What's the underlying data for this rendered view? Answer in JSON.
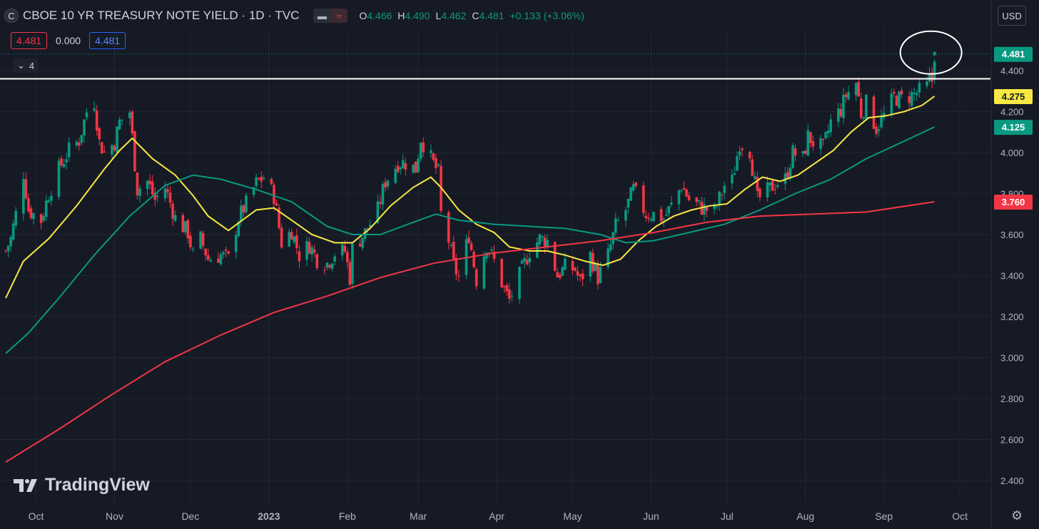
{
  "header": {
    "symbol_letter": "C",
    "title": "CBOE 10 YR TREASURY NOTE YIELD · 1D · TVC",
    "eye_icon": "eye-icon",
    "wave_icon": "wave-icon",
    "ohlc": {
      "o_label": "O",
      "o_value": "4.466",
      "h_label": "H",
      "h_value": "4.490",
      "l_label": "L",
      "l_value": "4.462",
      "c_label": "C",
      "c_value": "4.481",
      "change": "+0.133 (+3.06%)"
    }
  },
  "indicator_values": {
    "first": "4.481",
    "second": "0.000",
    "third": "4.481"
  },
  "collapse_count": "4",
  "currency": "USD",
  "logo_text": "TradingView",
  "colors": {
    "background": "#161a25",
    "up": "#089981",
    "down": "#f23645",
    "ma_fast": "#f7e843",
    "ma_mid": "#089981",
    "ma_slow": "#f23645"
  },
  "chart_data": {
    "type": "line",
    "title": "CBOE 10 YR TREASURY NOTE YIELD · 1D · TVC",
    "interval": "1D",
    "ylim": [
      2.37,
      4.52
    ],
    "y_ticks": [
      "4.400",
      "4.200",
      "4.000",
      "3.800",
      "3.600",
      "3.400",
      "3.200",
      "3.000",
      "2.800",
      "2.600",
      "2.400"
    ],
    "x_ticks": [
      {
        "label": "Oct",
        "date": "2022-10-01"
      },
      {
        "label": "Nov",
        "date": "2022-11-01"
      },
      {
        "label": "Dec",
        "date": "2022-12-01"
      },
      {
        "label": "2023",
        "date": "2023-01-01",
        "bold": true
      },
      {
        "label": "Feb",
        "date": "2023-02-01"
      },
      {
        "label": "Mar",
        "date": "2023-03-01"
      },
      {
        "label": "Apr",
        "date": "2023-04-01"
      },
      {
        "label": "May",
        "date": "2023-05-01"
      },
      {
        "label": "Jun",
        "date": "2023-06-01"
      },
      {
        "label": "Jul",
        "date": "2023-07-01"
      },
      {
        "label": "Aug",
        "date": "2023-08-01"
      },
      {
        "label": "Sep",
        "date": "2023-09-01"
      },
      {
        "label": "Oct",
        "date": "2023-10-01"
      }
    ],
    "x_range": [
      "2022-09-19",
      "2023-10-10"
    ],
    "close_series": [
      [
        "2022-09-19",
        3.52
      ],
      [
        "2022-09-21",
        3.58
      ],
      [
        "2022-09-23",
        3.7
      ],
      [
        "2022-09-26",
        3.9
      ],
      [
        "2022-09-28",
        3.72
      ],
      [
        "2022-10-03",
        3.67
      ],
      [
        "2022-10-06",
        3.8
      ],
      [
        "2022-10-10",
        3.92
      ],
      [
        "2022-10-14",
        4.01
      ],
      [
        "2022-10-18",
        4.06
      ],
      [
        "2022-10-21",
        4.2
      ],
      [
        "2022-10-24",
        4.25
      ],
      [
        "2022-10-26",
        4.05
      ],
      [
        "2022-10-28",
        4.0
      ],
      [
        "2022-11-01",
        4.05
      ],
      [
        "2022-11-03",
        4.15
      ],
      [
        "2022-11-07",
        4.2
      ],
      [
        "2022-11-10",
        3.82
      ],
      [
        "2022-11-14",
        3.86
      ],
      [
        "2022-11-17",
        3.77
      ],
      [
        "2022-11-21",
        3.83
      ],
      [
        "2022-11-25",
        3.68
      ],
      [
        "2022-11-30",
        3.61
      ],
      [
        "2022-12-02",
        3.5
      ],
      [
        "2022-12-05",
        3.58
      ],
      [
        "2022-12-08",
        3.48
      ],
      [
        "2022-12-13",
        3.5
      ],
      [
        "2022-12-16",
        3.48
      ],
      [
        "2022-12-20",
        3.68
      ],
      [
        "2022-12-23",
        3.75
      ],
      [
        "2022-12-27",
        3.85
      ],
      [
        "2022-12-30",
        3.88
      ],
      [
        "2023-01-03",
        3.79
      ],
      [
        "2023-01-06",
        3.56
      ],
      [
        "2023-01-10",
        3.62
      ],
      [
        "2023-01-13",
        3.5
      ],
      [
        "2023-01-17",
        3.55
      ],
      [
        "2023-01-20",
        3.48
      ],
      [
        "2023-01-24",
        3.46
      ],
      [
        "2023-01-27",
        3.51
      ],
      [
        "2023-01-31",
        3.52
      ],
      [
        "2023-02-02",
        3.39
      ],
      [
        "2023-02-03",
        3.53
      ],
      [
        "2023-02-08",
        3.61
      ],
      [
        "2023-02-13",
        3.72
      ],
      [
        "2023-02-16",
        3.86
      ],
      [
        "2023-02-21",
        3.95
      ],
      [
        "2023-02-24",
        3.95
      ],
      [
        "2023-02-28",
        3.92
      ],
      [
        "2023-03-02",
        4.07
      ],
      [
        "2023-03-06",
        3.97
      ],
      [
        "2023-03-09",
        3.9
      ],
      [
        "2023-03-10",
        3.7
      ],
      [
        "2023-03-13",
        3.57
      ],
      [
        "2023-03-15",
        3.45
      ],
      [
        "2023-03-17",
        3.39
      ],
      [
        "2023-03-21",
        3.6
      ],
      [
        "2023-03-24",
        3.38
      ],
      [
        "2023-03-28",
        3.55
      ],
      [
        "2023-03-31",
        3.47
      ],
      [
        "2023-04-04",
        3.33
      ],
      [
        "2023-04-06",
        3.28
      ],
      [
        "2023-04-10",
        3.4
      ],
      [
        "2023-04-14",
        3.52
      ],
      [
        "2023-04-18",
        3.58
      ],
      [
        "2023-04-21",
        3.57
      ],
      [
        "2023-04-25",
        3.4
      ],
      [
        "2023-04-28",
        3.44
      ],
      [
        "2023-05-02",
        3.43
      ],
      [
        "2023-05-04",
        3.37
      ],
      [
        "2023-05-08",
        3.5
      ],
      [
        "2023-05-11",
        3.39
      ],
      [
        "2023-05-15",
        3.5
      ],
      [
        "2023-05-18",
        3.64
      ],
      [
        "2023-05-22",
        3.72
      ],
      [
        "2023-05-25",
        3.82
      ],
      [
        "2023-05-30",
        3.7
      ],
      [
        "2023-06-02",
        3.7
      ],
      [
        "2023-06-06",
        3.68
      ],
      [
        "2023-06-09",
        3.74
      ],
      [
        "2023-06-13",
        3.84
      ],
      [
        "2023-06-16",
        3.77
      ],
      [
        "2023-06-21",
        3.73
      ],
      [
        "2023-06-26",
        3.71
      ],
      [
        "2023-06-30",
        3.84
      ],
      [
        "2023-07-03",
        3.86
      ],
      [
        "2023-07-06",
        4.05
      ],
      [
        "2023-07-10",
        4.01
      ],
      [
        "2023-07-13",
        3.77
      ],
      [
        "2023-07-17",
        3.81
      ],
      [
        "2023-07-20",
        3.85
      ],
      [
        "2023-07-24",
        3.87
      ],
      [
        "2023-07-27",
        4.0
      ],
      [
        "2023-07-31",
        3.97
      ],
      [
        "2023-08-02",
        4.08
      ],
      [
        "2023-08-04",
        4.05
      ],
      [
        "2023-08-08",
        4.02
      ],
      [
        "2023-08-11",
        4.15
      ],
      [
        "2023-08-15",
        4.21
      ],
      [
        "2023-08-17",
        4.28
      ],
      [
        "2023-08-21",
        4.34
      ],
      [
        "2023-08-23",
        4.19
      ],
      [
        "2023-08-25",
        4.24
      ],
      [
        "2023-08-29",
        4.12
      ],
      [
        "2023-09-01",
        4.18
      ],
      [
        "2023-09-05",
        4.27
      ],
      [
        "2023-09-08",
        4.26
      ],
      [
        "2023-09-12",
        4.28
      ],
      [
        "2023-09-14",
        4.29
      ],
      [
        "2023-09-18",
        4.32
      ],
      [
        "2023-09-19",
        4.36
      ],
      [
        "2023-09-20",
        4.35
      ],
      [
        "2023-09-21",
        4.481
      ]
    ],
    "series": [
      {
        "name": "4.275",
        "color": "#f7e843",
        "values": [
          [
            "2022-09-19",
            3.29
          ],
          [
            "2022-09-26",
            3.47
          ],
          [
            "2022-10-06",
            3.58
          ],
          [
            "2022-10-17",
            3.74
          ],
          [
            "2022-10-28",
            3.92
          ],
          [
            "2022-11-03",
            4.01
          ],
          [
            "2022-11-08",
            4.07
          ],
          [
            "2022-11-16",
            3.97
          ],
          [
            "2022-11-25",
            3.89
          ],
          [
            "2022-12-02",
            3.79
          ],
          [
            "2022-12-08",
            3.69
          ],
          [
            "2022-12-16",
            3.62
          ],
          [
            "2022-12-27",
            3.72
          ],
          [
            "2023-01-03",
            3.73
          ],
          [
            "2023-01-10",
            3.67
          ],
          [
            "2023-01-18",
            3.6
          ],
          [
            "2023-01-27",
            3.56
          ],
          [
            "2023-02-03",
            3.56
          ],
          [
            "2023-02-10",
            3.63
          ],
          [
            "2023-02-18",
            3.74
          ],
          [
            "2023-02-27",
            3.83
          ],
          [
            "2023-03-06",
            3.88
          ],
          [
            "2023-03-10",
            3.83
          ],
          [
            "2023-03-17",
            3.72
          ],
          [
            "2023-03-24",
            3.65
          ],
          [
            "2023-03-31",
            3.61
          ],
          [
            "2023-04-06",
            3.54
          ],
          [
            "2023-04-14",
            3.52
          ],
          [
            "2023-04-21",
            3.52
          ],
          [
            "2023-04-28",
            3.5
          ],
          [
            "2023-05-06",
            3.47
          ],
          [
            "2023-05-13",
            3.45
          ],
          [
            "2023-05-20",
            3.48
          ],
          [
            "2023-05-27",
            3.57
          ],
          [
            "2023-06-03",
            3.64
          ],
          [
            "2023-06-10",
            3.69
          ],
          [
            "2023-06-17",
            3.72
          ],
          [
            "2023-06-24",
            3.74
          ],
          [
            "2023-07-01",
            3.75
          ],
          [
            "2023-07-08",
            3.82
          ],
          [
            "2023-07-15",
            3.88
          ],
          [
            "2023-07-22",
            3.86
          ],
          [
            "2023-07-29",
            3.89
          ],
          [
            "2023-08-05",
            3.95
          ],
          [
            "2023-08-12",
            4.01
          ],
          [
            "2023-08-19",
            4.1
          ],
          [
            "2023-08-26",
            4.17
          ],
          [
            "2023-09-02",
            4.18
          ],
          [
            "2023-09-09",
            4.2
          ],
          [
            "2023-09-16",
            4.23
          ],
          [
            "2023-09-21",
            4.275
          ]
        ]
      },
      {
        "name": "4.125",
        "color": "#089981",
        "values": [
          [
            "2022-09-19",
            3.02
          ],
          [
            "2022-09-28",
            3.12
          ],
          [
            "2022-10-10",
            3.29
          ],
          [
            "2022-10-24",
            3.5
          ],
          [
            "2022-11-07",
            3.69
          ],
          [
            "2022-11-21",
            3.84
          ],
          [
            "2022-12-02",
            3.89
          ],
          [
            "2022-12-13",
            3.87
          ],
          [
            "2022-12-27",
            3.82
          ],
          [
            "2023-01-10",
            3.76
          ],
          [
            "2023-01-24",
            3.64
          ],
          [
            "2023-02-03",
            3.6
          ],
          [
            "2023-02-14",
            3.6
          ],
          [
            "2023-02-27",
            3.66
          ],
          [
            "2023-03-08",
            3.7
          ],
          [
            "2023-03-17",
            3.67
          ],
          [
            "2023-03-31",
            3.65
          ],
          [
            "2023-04-14",
            3.64
          ],
          [
            "2023-04-28",
            3.63
          ],
          [
            "2023-05-12",
            3.6
          ],
          [
            "2023-05-22",
            3.56
          ],
          [
            "2023-06-02",
            3.57
          ],
          [
            "2023-06-16",
            3.61
          ],
          [
            "2023-06-30",
            3.65
          ],
          [
            "2023-07-14",
            3.72
          ],
          [
            "2023-07-28",
            3.8
          ],
          [
            "2023-08-11",
            3.87
          ],
          [
            "2023-08-25",
            3.97
          ],
          [
            "2023-09-08",
            4.05
          ],
          [
            "2023-09-21",
            4.125
          ]
        ]
      },
      {
        "name": "3.760",
        "color": "#f23645",
        "values": [
          [
            "2022-09-19",
            2.49
          ],
          [
            "2022-10-10",
            2.65
          ],
          [
            "2022-10-31",
            2.82
          ],
          [
            "2022-11-21",
            2.98
          ],
          [
            "2022-12-13",
            3.11
          ],
          [
            "2023-01-03",
            3.22
          ],
          [
            "2023-01-24",
            3.3
          ],
          [
            "2023-02-14",
            3.39
          ],
          [
            "2023-03-07",
            3.46
          ],
          [
            "2023-03-31",
            3.51
          ],
          [
            "2023-04-21",
            3.54
          ],
          [
            "2023-05-12",
            3.57
          ],
          [
            "2023-06-02",
            3.61
          ],
          [
            "2023-06-23",
            3.66
          ],
          [
            "2023-07-14",
            3.69
          ],
          [
            "2023-08-04",
            3.7
          ],
          [
            "2023-08-25",
            3.71
          ],
          [
            "2023-09-21",
            3.76
          ]
        ]
      }
    ],
    "price_tags": [
      {
        "label": "4.481",
        "value": 4.481,
        "bg": "#089981",
        "fg": "#ffffff"
      },
      {
        "label": "4.275",
        "value": 4.275,
        "bg": "#f7e843",
        "fg": "#131722"
      },
      {
        "label": "4.125",
        "value": 4.125,
        "bg": "#089981",
        "fg": "#ffffff"
      },
      {
        "label": "3.760",
        "value": 3.76,
        "bg": "#f23645",
        "fg": "#ffffff"
      }
    ],
    "horizontal_line": 4.36,
    "last_price_line": 4.481,
    "annotation": "ellipse around last bar",
    "grid": true
  }
}
